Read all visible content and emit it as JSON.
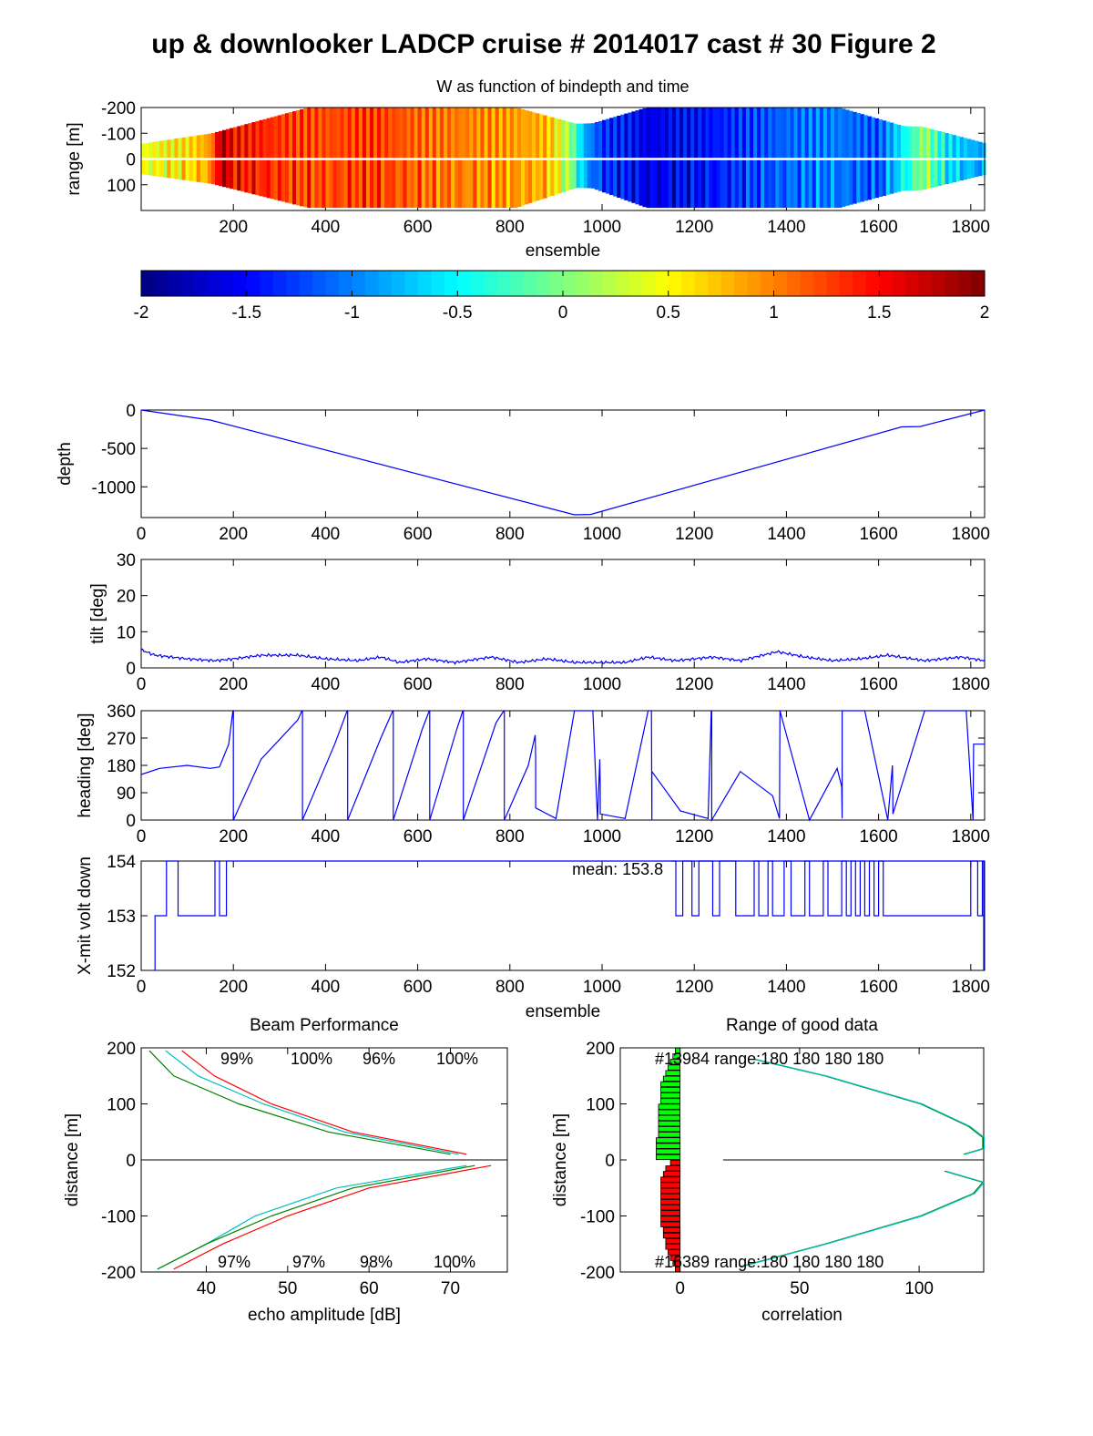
{
  "figure": {
    "title": "up & downlooker LADCP cruise # 2014017 cast # 30 Figure 2"
  },
  "colors": {
    "line_blue": "#0000ff",
    "green": "#008000",
    "red": "#ff0000",
    "cyan": "#00bfbf",
    "bar_green": "#00ff00",
    "bar_red": "#ff0000",
    "axis": "#000000"
  },
  "chart_data": [
    {
      "id": "w_section",
      "type": "heatmap",
      "title": "W as function of bindepth and time",
      "xlabel": "ensemble",
      "ylabel": "range [m]",
      "xlim": [
        0,
        1830
      ],
      "ylim": [
        -200,
        200
      ],
      "y_reversed": true,
      "xticks": [
        200,
        400,
        600,
        800,
        1000,
        1200,
        1400,
        1600,
        1800
      ],
      "yticks": [
        -200,
        -100,
        0,
        100
      ],
      "ytick_labels": [
        "-200",
        "-100",
        "0",
        "100"
      ],
      "ensemble_w": [
        [
          0,
          0.4
        ],
        [
          100,
          0.6
        ],
        [
          150,
          0.9
        ],
        [
          175,
          1.9
        ],
        [
          200,
          1.5
        ],
        [
          300,
          1.3
        ],
        [
          400,
          1.2
        ],
        [
          500,
          1.3
        ],
        [
          600,
          1.1
        ],
        [
          700,
          1.0
        ],
        [
          800,
          0.9
        ],
        [
          880,
          0.8
        ],
        [
          930,
          0.1
        ],
        [
          960,
          -0.8
        ],
        [
          1000,
          -1.3
        ],
        [
          1100,
          -1.6
        ],
        [
          1200,
          -1.5
        ],
        [
          1300,
          -1.3
        ],
        [
          1400,
          -1.1
        ],
        [
          1500,
          -1.0
        ],
        [
          1600,
          -1.2
        ],
        [
          1700,
          0.1
        ],
        [
          1750,
          -0.6
        ],
        [
          1830,
          -0.9
        ]
      ],
      "colorbar": {
        "range": [
          -2,
          2
        ],
        "ticks": [
          -2,
          -1.5,
          -1,
          -0.5,
          0,
          0.5,
          1,
          1.5,
          2
        ],
        "tick_labels": [
          "-2",
          "-1.5",
          "-1",
          "-0.5",
          "0",
          "0.5",
          "1",
          "1.5",
          "2"
        ],
        "colormap": "jet"
      }
    },
    {
      "id": "depth",
      "type": "line",
      "ylabel": "depth",
      "xlim": [
        0,
        1830
      ],
      "ylim": [
        -1400,
        0
      ],
      "xticks": [
        0,
        200,
        400,
        600,
        800,
        1000,
        1200,
        1400,
        1600,
        1800
      ],
      "yticks": [
        0,
        -500,
        -1000
      ],
      "ytick_labels": [
        "0",
        "-500",
        "-1000"
      ],
      "x": [
        0,
        150,
        940,
        975,
        1650,
        1690,
        1830
      ],
      "y": [
        0,
        -130,
        -1365,
        -1360,
        -220,
        -215,
        0
      ]
    },
    {
      "id": "tilt",
      "type": "line",
      "ylabel": "tilt [deg]",
      "xlim": [
        0,
        1830
      ],
      "ylim": [
        0,
        30
      ],
      "xticks": [
        0,
        200,
        400,
        600,
        800,
        1000,
        1200,
        1400,
        1600,
        1800
      ],
      "yticks": [
        0,
        10,
        20,
        30
      ],
      "x": [
        0,
        30,
        100,
        160,
        200,
        260,
        340,
        400,
        470,
        520,
        560,
        620,
        680,
        760,
        820,
        880,
        940,
        1000,
        1050,
        1100,
        1160,
        1240,
        1300,
        1380,
        1440,
        1500,
        1560,
        1620,
        1700,
        1780,
        1830
      ],
      "y": [
        5,
        3.5,
        2.5,
        2,
        2.5,
        3.5,
        3.5,
        2.5,
        2,
        3,
        1.5,
        2.5,
        1.5,
        3,
        1.5,
        2.5,
        1.5,
        1.5,
        1.5,
        3,
        2,
        3,
        2,
        4.5,
        3,
        2,
        2.5,
        3.5,
        2,
        3,
        2
      ]
    },
    {
      "id": "heading",
      "type": "line",
      "ylabel": "heading [deg]",
      "xlim": [
        0,
        1830
      ],
      "ylim": [
        0,
        360
      ],
      "xticks": [
        0,
        200,
        400,
        600,
        800,
        1000,
        1200,
        1400,
        1600,
        1800
      ],
      "yticks": [
        0,
        90,
        180,
        270,
        360
      ],
      "x": [
        0,
        40,
        100,
        150,
        170,
        190,
        199,
        200,
        200,
        260,
        340,
        349,
        350,
        350,
        420,
        447,
        448,
        448,
        520,
        546,
        547,
        547,
        610,
        625,
        626,
        626,
        685,
        698,
        699,
        699,
        770,
        787,
        788,
        788,
        840,
        855,
        856,
        856,
        900,
        940,
        980,
        990,
        995,
        996,
        996,
        1050,
        1100,
        1107,
        1108,
        1108,
        1170,
        1230,
        1237,
        1238,
        1238,
        1300,
        1370,
        1385,
        1386,
        1386,
        1450,
        1510,
        1520,
        1521,
        1521,
        1570,
        1620,
        1630,
        1631,
        1631,
        1700,
        1790,
        1805,
        1806,
        1806,
        1830
      ],
      "y": [
        150,
        170,
        180,
        170,
        175,
        250,
        360,
        360,
        0,
        200,
        330,
        360,
        360,
        0,
        250,
        360,
        360,
        0,
        270,
        360,
        360,
        0,
        300,
        360,
        360,
        0,
        300,
        360,
        360,
        0,
        320,
        360,
        360,
        0,
        180,
        280,
        200,
        40,
        5,
        360,
        360,
        0,
        200,
        110,
        20,
        5,
        360,
        360,
        0,
        160,
        30,
        5,
        360,
        360,
        0,
        160,
        80,
        5,
        360,
        360,
        0,
        170,
        110,
        5,
        360,
        360,
        0,
        180,
        70,
        20,
        360,
        360,
        0,
        250,
        250,
        250
      ]
    },
    {
      "id": "xmit_volt",
      "type": "line",
      "ylabel": "X-mit volt down",
      "xlabel": "ensemble",
      "xlim": [
        0,
        1830
      ],
      "ylim": [
        152,
        154
      ],
      "xticks": [
        0,
        200,
        400,
        600,
        800,
        1000,
        1200,
        1400,
        1600,
        1800
      ],
      "yticks": [
        152,
        153,
        154
      ],
      "annotation": "mean: 153.8",
      "x": [
        30,
        30,
        55,
        55,
        80,
        80,
        160,
        160,
        170,
        170,
        185,
        185,
        1830
      ],
      "y": [
        152,
        153,
        153,
        154,
        154,
        153,
        153,
        154,
        154,
        153,
        153,
        154,
        154
      ]
    },
    {
      "id": "beam_performance",
      "type": "line",
      "title": "Beam Performance",
      "xlabel": "echo amplitude [dB]",
      "ylabel": "distance [m]",
      "xlim": [
        32,
        77
      ],
      "ylim": [
        -200,
        200
      ],
      "xticks": [
        40,
        50,
        60,
        70
      ],
      "yticks": [
        -200,
        -100,
        0,
        100,
        200
      ],
      "percent_labels_up": [
        "99%",
        "100%",
        "96%",
        "100%"
      ],
      "percent_labels_down": [
        "97%",
        "97%",
        "98%",
        "100%"
      ],
      "series": [
        {
          "color": "red",
          "distance": [
            195,
            150,
            100,
            50,
            10,
            -10,
            -50,
            -100,
            -150,
            -195
          ],
          "amplitude": [
            37,
            41,
            48,
            58,
            72,
            75,
            60,
            50,
            42,
            36
          ]
        },
        {
          "color": "blue",
          "distance": [
            195,
            150,
            100,
            50,
            10,
            -10,
            -50,
            -100,
            -150,
            -195
          ],
          "amplitude": [
            36.5,
            42,
            50,
            60,
            74,
            73,
            57,
            47,
            40,
            35
          ]
        },
        {
          "color": "cyan",
          "distance": [
            195,
            150,
            100,
            50,
            10,
            -10,
            -50,
            -100,
            -150,
            -195
          ],
          "amplitude": [
            35,
            39,
            47,
            57,
            71,
            72,
            56,
            46,
            40,
            34
          ]
        },
        {
          "color": "green",
          "distance": [
            195,
            150,
            100,
            50,
            10,
            -10,
            -50,
            -100,
            -150,
            -195
          ],
          "amplitude": [
            33,
            36,
            44,
            55,
            70,
            73,
            58,
            48,
            40,
            34
          ]
        }
      ]
    },
    {
      "id": "range_good_data",
      "type": "line",
      "title": "Range of good data",
      "xlabel": "correlation",
      "ylabel": "distance [m]",
      "xlim": [
        -25,
        127
      ],
      "ylim": [
        -200,
        200
      ],
      "xticks": [
        0,
        50,
        100
      ],
      "yticks": [
        -200,
        -100,
        0,
        100,
        200
      ],
      "annotation_up": "#13984 range:180  180  180  180",
      "annotation_down": "#16389 range:180  180  180  180",
      "correlation_up": {
        "distance": [
          180,
          150,
          100,
          60,
          40,
          20,
          10
        ],
        "correlation": [
          30,
          60,
          100,
          120,
          126,
          126,
          118
        ]
      },
      "correlation_down": {
        "distance": [
          -20,
          -40,
          -60,
          -100,
          -150,
          -190
        ],
        "correlation": [
          110,
          126,
          122,
          100,
          60,
          25
        ]
      },
      "bars_up": {
        "distance": [
          5,
          15,
          25,
          35,
          45,
          55,
          65,
          75,
          85,
          95,
          105,
          115,
          125,
          135,
          145,
          155,
          165,
          175,
          185,
          195
        ],
        "count": [
          -10,
          -10,
          -10,
          -10,
          -9,
          -9,
          -9,
          -9,
          -9,
          -9,
          -8,
          -8,
          -8,
          -8,
          -7,
          -6,
          -5,
          -4,
          -3,
          -2
        ]
      },
      "bars_down": {
        "distance": [
          -5,
          -15,
          -25,
          -35,
          -45,
          -55,
          -65,
          -75,
          -85,
          -95,
          -105,
          -115,
          -125,
          -135,
          -145,
          -155,
          -165,
          -175,
          -185,
          -195
        ],
        "count": [
          -4,
          -6,
          -7,
          -8,
          -8,
          -8,
          -8,
          -8,
          -8,
          -8,
          -8,
          -8,
          -7,
          -7,
          -6,
          -6,
          -5,
          -4,
          -3,
          -2
        ]
      }
    }
  ]
}
